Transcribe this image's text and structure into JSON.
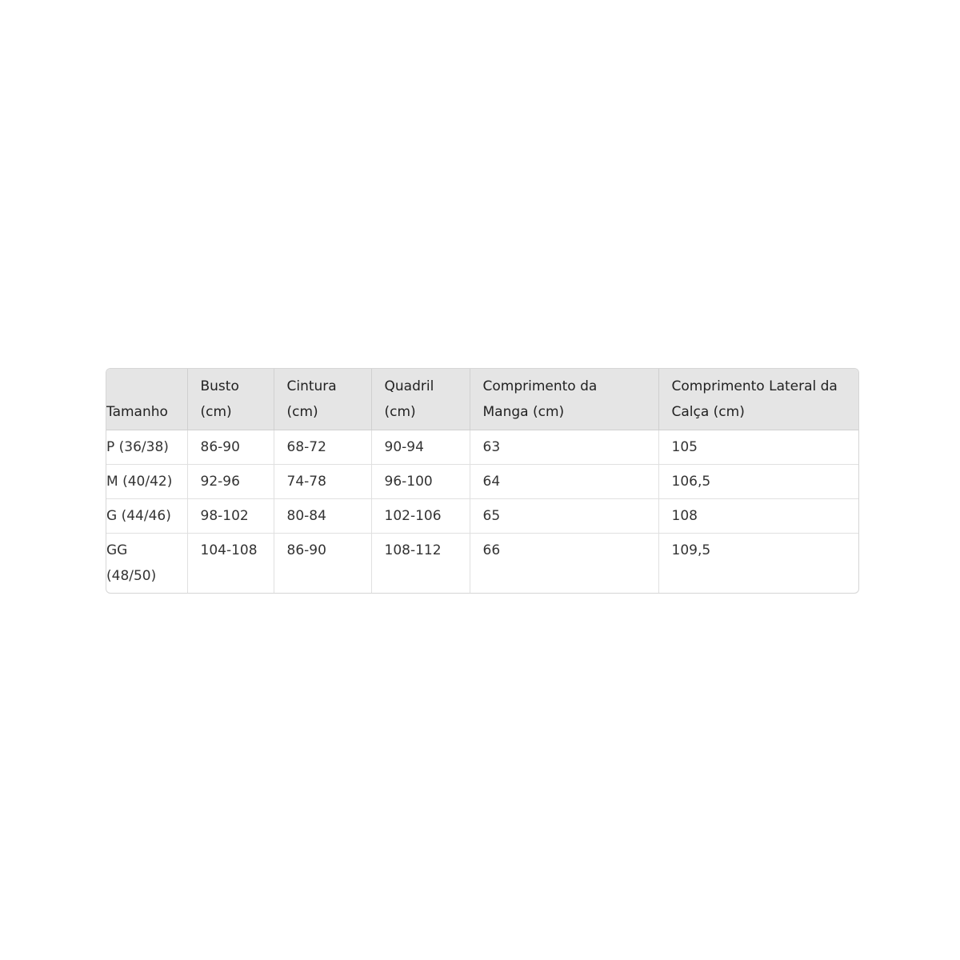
{
  "table": {
    "headers": [
      "Tamanho",
      "Busto (cm)",
      "Cintura (cm)",
      "Quadril (cm)",
      "Comprimento da Manga (cm)",
      "Comprimento Lateral da Calça (cm)"
    ],
    "rows": [
      [
        "P (36/38)",
        "86-90",
        "68-72",
        "90-94",
        "63",
        "105"
      ],
      [
        "M (40/42)",
        "92-96",
        "74-78",
        "96-100",
        "64",
        "106,5"
      ],
      [
        "G (44/46)",
        "98-102",
        "80-84",
        "102-106",
        "65",
        "108"
      ],
      [
        "GG (48/50)",
        "104-108",
        "86-90",
        "108-112",
        "66",
        "109,5"
      ]
    ]
  }
}
